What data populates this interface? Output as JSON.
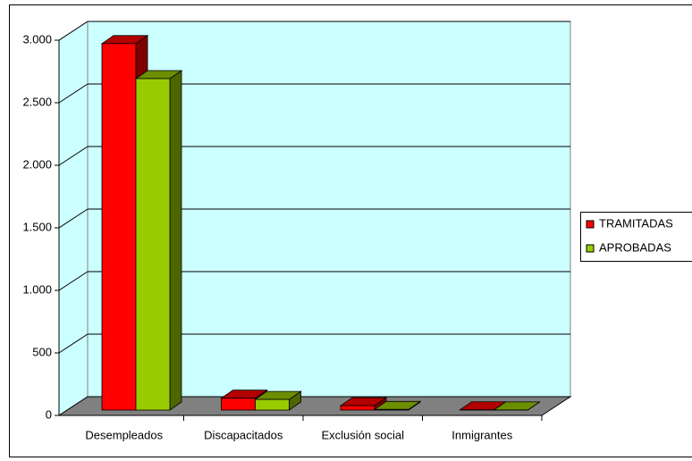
{
  "chart_data": {
    "type": "bar3d",
    "categories": [
      "Desempleados",
      "Discapacitados",
      "Exclusión social",
      "Inmigrantes"
    ],
    "series": [
      {
        "name": "TRAMITADAS",
        "color": "#ff0000",
        "values": [
          2930,
          95,
          35,
          2
        ]
      },
      {
        "name": "APROBADAS",
        "color": "#99cc00",
        "values": [
          2650,
          85,
          5,
          1
        ]
      }
    ],
    "ylim": [
      0,
      3000
    ],
    "yticks": [
      0,
      500,
      {
        "value": 1000,
        "label": "1.000"
      },
      {
        "value": 1500,
        "label": "1.500"
      },
      {
        "value": 2000,
        "label": "2.000"
      },
      {
        "value": 2500,
        "label": "2.500"
      },
      {
        "value": 3000,
        "label": "3.000"
      }
    ],
    "grid": true,
    "legend": "right",
    "wall_color": "#ccffff",
    "floor_color": "#808080"
  }
}
